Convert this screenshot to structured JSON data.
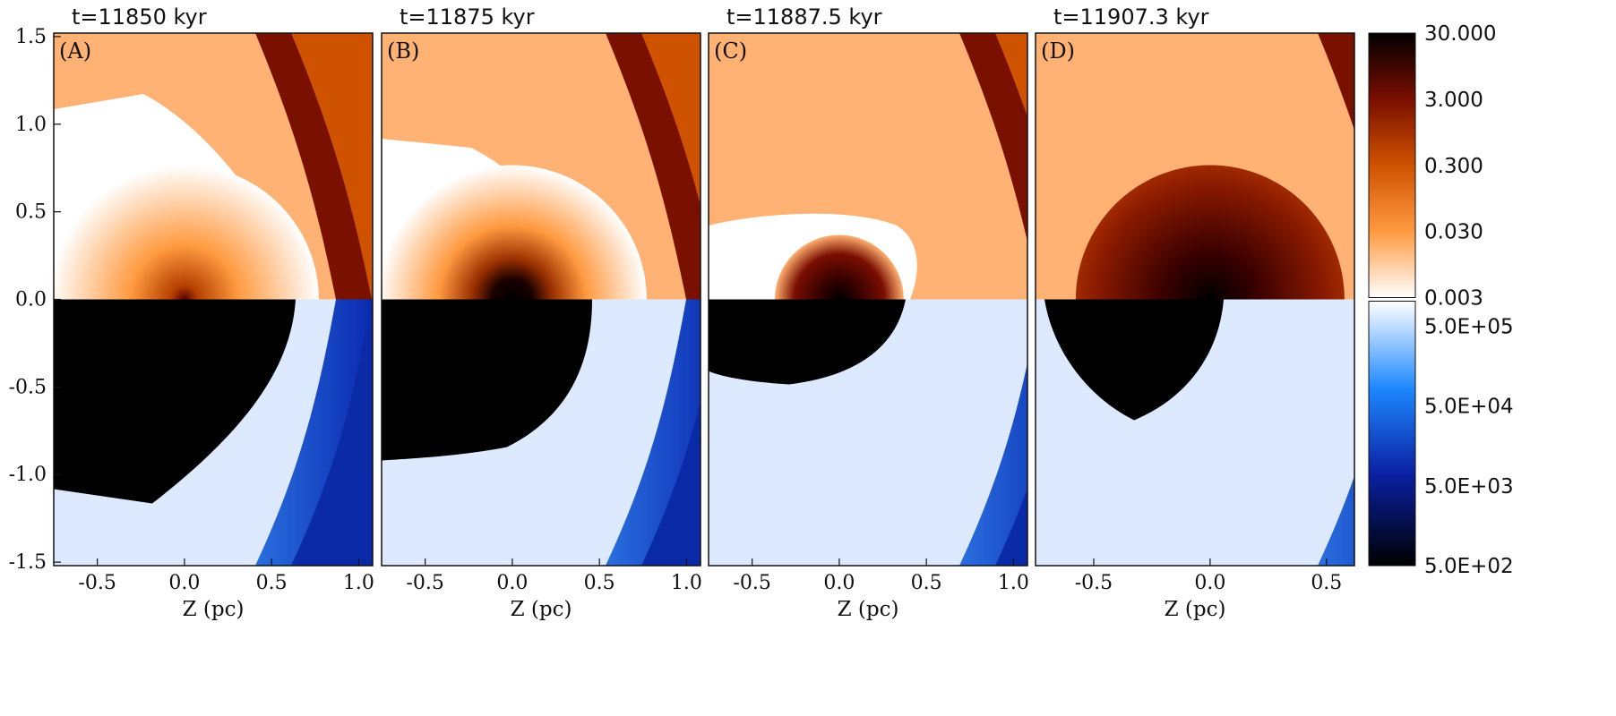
{
  "chart_data": {
    "type": "heatmap",
    "description_fields_note": "",
    "y_axis": {
      "ticks": [
        "1.5",
        "1.0",
        "0.5",
        "0.0",
        "-0.5",
        "-1.0",
        "-1.5"
      ],
      "values": [
        1.5,
        1.0,
        0.5,
        0.0,
        -0.5,
        -1.0,
        -1.5
      ],
      "ylim": [
        -1.52,
        1.52
      ]
    },
    "panels": [
      {
        "letter": "(A)",
        "time": "t=11850 kyr",
        "xlabel": "Z (pc)",
        "xlim": [
          -0.75,
          1.08
        ],
        "xticks": [
          "-0.5",
          "0.0",
          "0.5",
          "1.0"
        ],
        "xtick_values": [
          -0.5,
          0.0,
          0.5,
          1.0
        ]
      },
      {
        "letter": "(B)",
        "time": "t=11875 kyr",
        "xlabel": "Z (pc)",
        "xlim": [
          -0.75,
          1.08
        ],
        "xticks": [
          "-0.5",
          "0.0",
          "0.5",
          "1.0"
        ],
        "xtick_values": [
          -0.5,
          0.0,
          0.5,
          1.0
        ]
      },
      {
        "letter": "(C)",
        "time": "t=11887.5 kyr",
        "xlabel": "Z (pc)",
        "xlim": [
          -0.75,
          1.08
        ],
        "xticks": [
          "-0.5",
          "0.0",
          "0.5",
          "1.0"
        ],
        "xtick_values": [
          -0.5,
          0.0,
          0.5,
          1.0
        ]
      },
      {
        "letter": "(D)",
        "time": "t=11907.3 kyr",
        "xlabel": "Z (pc)",
        "xlim": [
          -0.75,
          0.62
        ],
        "xticks": [
          "-0.5",
          "0.0",
          "0.5"
        ],
        "xtick_values": [
          -0.5,
          0.0,
          0.5
        ]
      }
    ],
    "colorbar_top": {
      "labels": [
        "30.000",
        "3.000",
        "0.300",
        "0.030",
        "0.003"
      ],
      "colors": [
        "#000000",
        "#7a0e00",
        "#cf5200",
        "#ff9a40",
        "#ffffff"
      ]
    },
    "colorbar_bottom": {
      "labels": [
        "5.0E+05",
        "5.0E+04",
        "5.0E+03",
        "5.0E+02"
      ],
      "colors": [
        "#ffffff",
        "#1e88ff",
        "#0a1fa0",
        "#000000"
      ]
    }
  }
}
